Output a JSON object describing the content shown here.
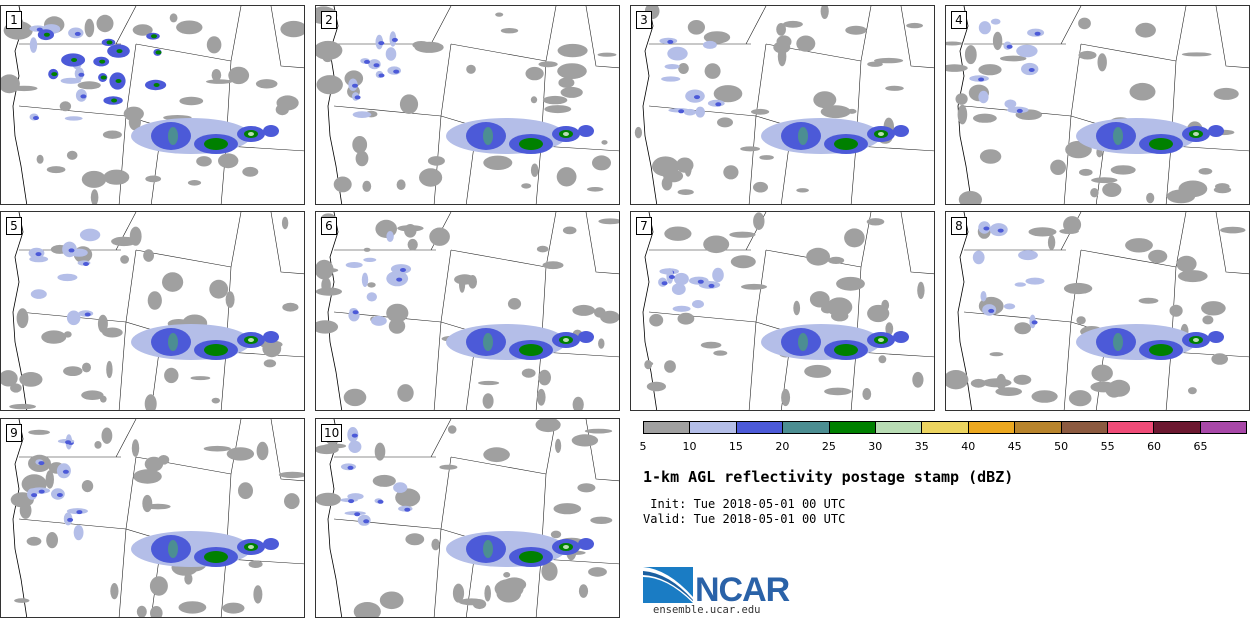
{
  "panels": [
    {
      "label": "1"
    },
    {
      "label": "2"
    },
    {
      "label": "3"
    },
    {
      "label": "4"
    },
    {
      "label": "5"
    },
    {
      "label": "6"
    },
    {
      "label": "7"
    },
    {
      "label": "8"
    },
    {
      "label": "9"
    },
    {
      "label": "10"
    }
  ],
  "colorbar": {
    "colors": [
      "#a0a0a0",
      "#b4bee8",
      "#4c5ad8",
      "#4c8e92",
      "#008000",
      "#b8dcb4",
      "#ecd460",
      "#eca820",
      "#b8842c",
      "#8c5a40",
      "#f04c78",
      "#6c1830",
      "#a848a8"
    ],
    "ticks": [
      "5",
      "10",
      "15",
      "20",
      "25",
      "30",
      "35",
      "40",
      "45",
      "50",
      "55",
      "60",
      "65"
    ]
  },
  "title": "1-km AGL reflectivity postage stamp (dBZ)",
  "init": " Init: Tue 2018-05-01 00 UTC",
  "valid": "Valid: Tue 2018-05-01 00 UTC",
  "logo": {
    "text": "NCAR",
    "url": "ensemble.ucar.edu"
  }
}
